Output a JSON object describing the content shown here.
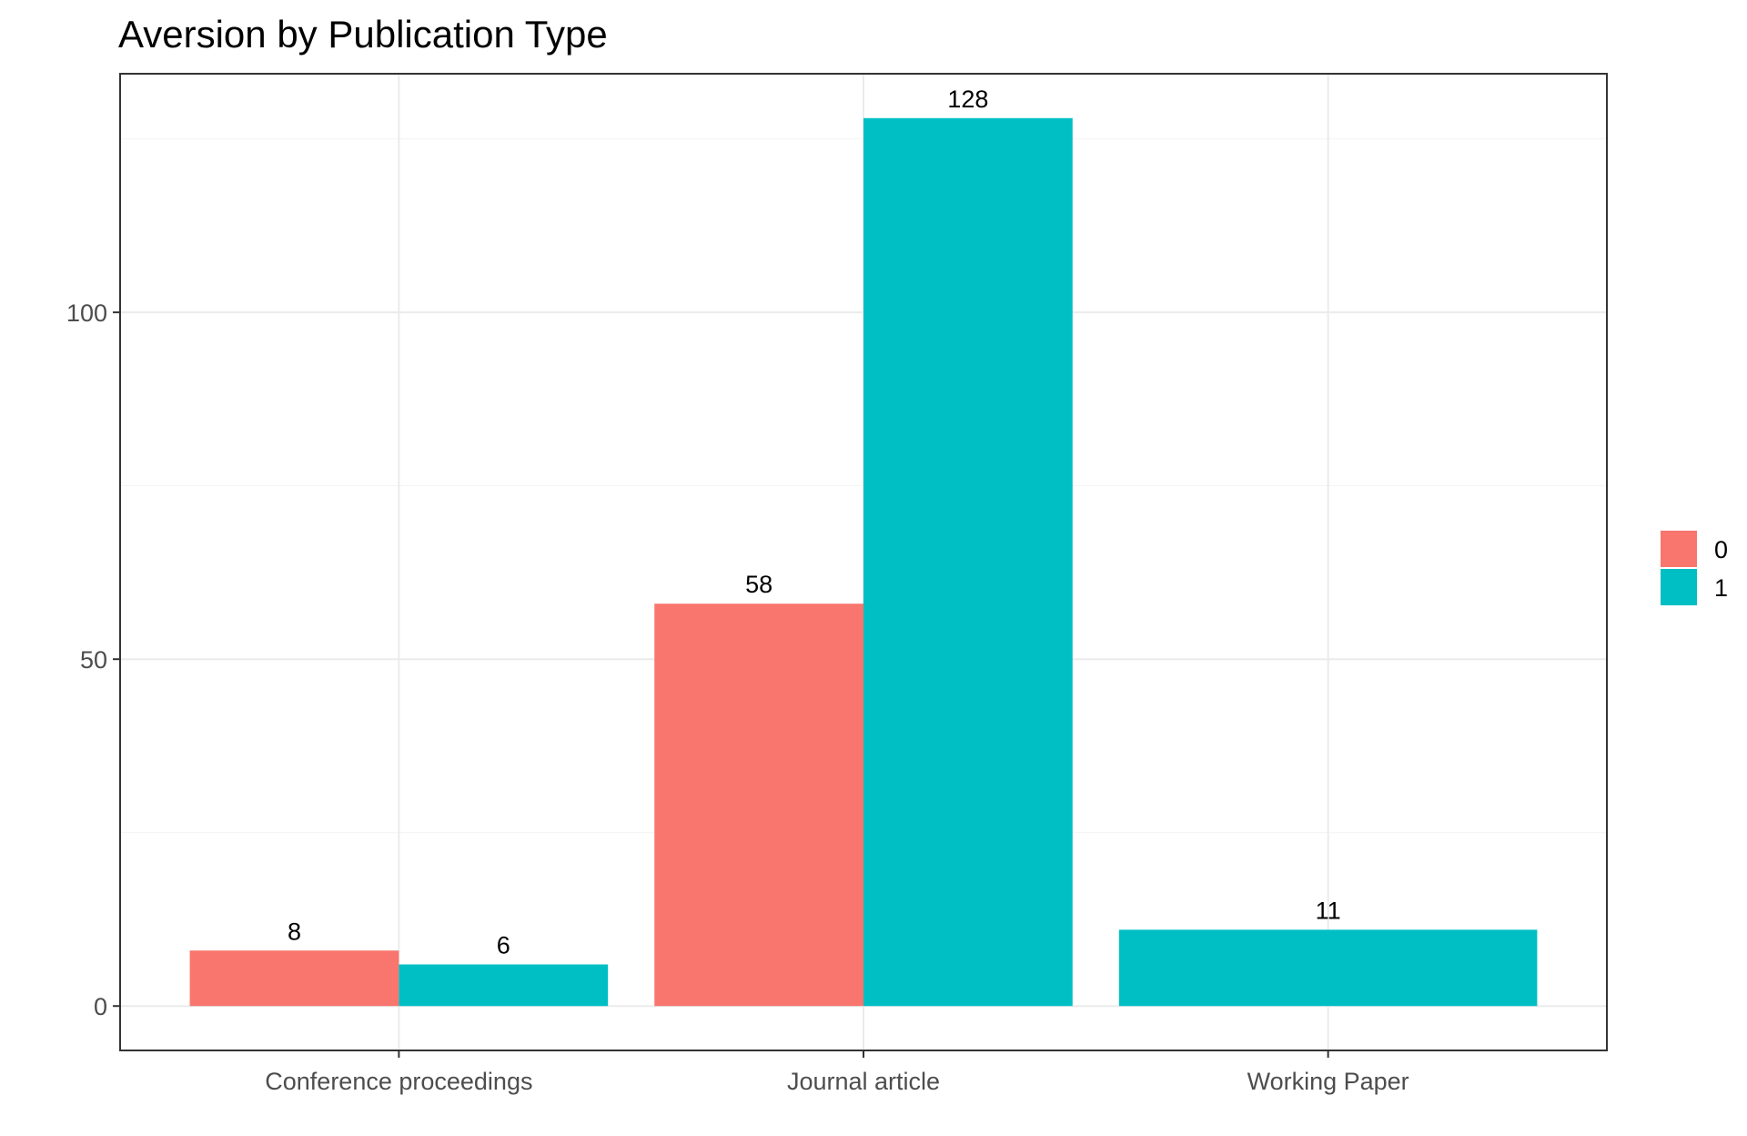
{
  "chart_data": {
    "type": "bar",
    "title": "Aversion by Publication Type",
    "xlabel": "",
    "ylabel": "",
    "categories": [
      "Conference proceedings",
      "Journal article",
      "Working Paper"
    ],
    "series": [
      {
        "name": "0",
        "color": "#F8766D",
        "values": [
          8,
          58,
          null
        ]
      },
      {
        "name": "1",
        "color": "#00BFC4",
        "values": [
          6,
          128,
          11
        ]
      }
    ],
    "y_ticks": [
      0,
      50,
      100
    ],
    "ylim": [
      -6.4,
      134.4
    ],
    "grid": true,
    "legend_position": "right"
  }
}
